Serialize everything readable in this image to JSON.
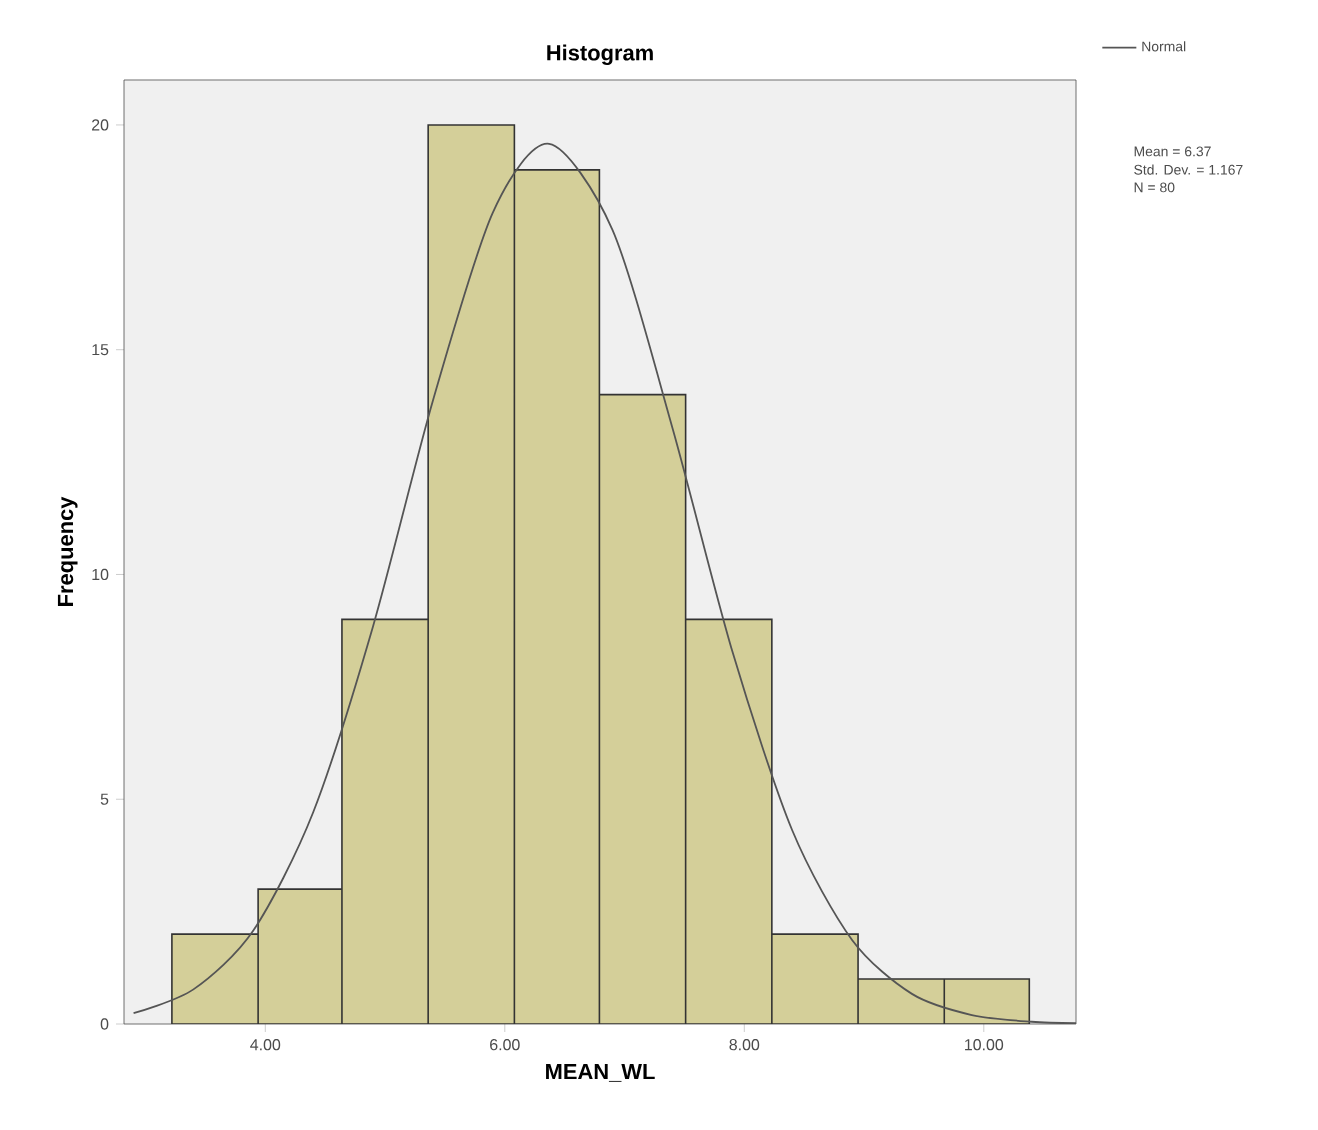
{
  "chart_data": {
    "type": "histogram",
    "title": "Histogram",
    "xlabel": "MEAN_WL",
    "ylabel": "Frequency",
    "bins": [
      3.22,
      3.94,
      4.64,
      5.36,
      6.08,
      6.79,
      7.51,
      8.23,
      8.95,
      9.67,
      10.38
    ],
    "values": [
      2,
      3,
      9,
      20,
      19,
      14,
      9,
      2,
      1,
      1
    ],
    "color": "#d4cf99",
    "series": [
      {
        "type": "line",
        "name": "Normal",
        "color": "#555555",
        "x": [
          2.9,
          3.4,
          3.9,
          4.4,
          4.9,
          5.4,
          5.9,
          6.37,
          6.9,
          7.4,
          7.9,
          8.4,
          8.9,
          9.4,
          9.9,
          10.4,
          10.77
        ],
        "values": [
          0.24,
          0.77,
          2.08,
          4.71,
          8.85,
          13.87,
          18.05,
          19.58,
          17.66,
          13.26,
          8.29,
          4.31,
          1.87,
          0.67,
          0.2,
          0.05,
          0.02
        ]
      }
    ],
    "xlim": [
      2.82,
      10.77
    ],
    "ylim": [
      0,
      21
    ],
    "xticks": [
      {
        "value": 4,
        "label": "4.00"
      },
      {
        "value": 6,
        "label": "6.00"
      },
      {
        "value": 8,
        "label": "8.00"
      },
      {
        "value": 10,
        "label": "10.00"
      }
    ],
    "yticks": [
      0,
      5,
      10,
      15,
      20
    ],
    "legend": "top right",
    "annotations": [
      "Mean = 6.37",
      "Std. Dev. = 1.167",
      "N = 80"
    ]
  }
}
